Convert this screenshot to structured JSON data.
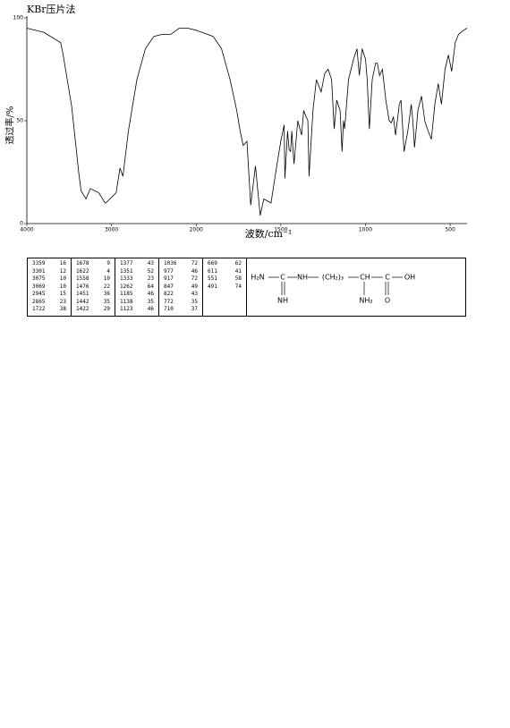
{
  "header": {
    "title": "KBr压片法"
  },
  "chart_data": {
    "type": "line",
    "xlabel": "波数/cm⁻¹",
    "ylabel": "透过率/%",
    "color": "#000000",
    "xlim": [
      4000,
      400
    ],
    "xticks": [
      4000,
      3000,
      2000,
      1500,
      1000,
      500
    ],
    "ylim": [
      0,
      100
    ],
    "yticks": [
      0,
      50,
      100
    ],
    "x": [
      4000,
      3800,
      3600,
      3575,
      3470,
      3385,
      3359,
      3301,
      3250,
      3150,
      3075,
      3069,
      2945,
      2900,
      2865,
      2800,
      2700,
      2600,
      2500,
      2400,
      2300,
      2200,
      2100,
      2000,
      1900,
      1850,
      1800,
      1760,
      1740,
      1722,
      1700,
      1678,
      1650,
      1622,
      1600,
      1558,
      1530,
      1500,
      1480,
      1476,
      1460,
      1451,
      1442,
      1435,
      1422,
      1400,
      1377,
      1365,
      1351,
      1340,
      1333,
      1310,
      1290,
      1262,
      1240,
      1220,
      1200,
      1185,
      1170,
      1150,
      1138,
      1130,
      1123,
      1100,
      1070,
      1050,
      1036,
      1020,
      1000,
      990,
      977,
      960,
      940,
      930,
      917,
      900,
      880,
      860,
      847,
      835,
      822,
      800,
      790,
      772,
      750,
      730,
      720,
      710,
      690,
      669,
      650,
      630,
      611,
      590,
      570,
      551,
      530,
      510,
      491,
      470,
      450,
      420,
      400
    ],
    "values": [
      95,
      93,
      88,
      83,
      57,
      24,
      16,
      12,
      17,
      15,
      10,
      10,
      15,
      27,
      23,
      45,
      70,
      85,
      91,
      92,
      92,
      95,
      95,
      94,
      91,
      85,
      70,
      55,
      45,
      38,
      40,
      9,
      28,
      4,
      12,
      10,
      25,
      40,
      48,
      22,
      45,
      36,
      35,
      45,
      29,
      50,
      43,
      55,
      52,
      50,
      23,
      55,
      70,
      64,
      73,
      75,
      70,
      46,
      60,
      55,
      35,
      50,
      46,
      70,
      80,
      85,
      72,
      85,
      80,
      70,
      46,
      70,
      78,
      78,
      72,
      75,
      60,
      50,
      49,
      52,
      43,
      58,
      60,
      35,
      45,
      58,
      50,
      37,
      55,
      62,
      50,
      45,
      41,
      58,
      68,
      58,
      75,
      82,
      74,
      88,
      92,
      94,
      95
    ]
  },
  "table": {
    "columns": [
      [
        [
          "3359",
          "16"
        ],
        [
          "3301",
          "12"
        ],
        [
          "3075",
          "10"
        ],
        [
          "3069",
          "10"
        ],
        [
          "2945",
          "15"
        ],
        [
          "2865",
          "23"
        ],
        [
          "1722",
          "38"
        ]
      ],
      [
        [
          "1678",
          "9"
        ],
        [
          "1622",
          "4"
        ],
        [
          "1558",
          "10"
        ],
        [
          "1476",
          "22"
        ],
        [
          "1451",
          "36"
        ],
        [
          "1442",
          "35"
        ],
        [
          "1422",
          "29"
        ]
      ],
      [
        [
          "1377",
          "43"
        ],
        [
          "1351",
          "52"
        ],
        [
          "1333",
          "23"
        ],
        [
          "1262",
          "64"
        ],
        [
          "1185",
          "46"
        ],
        [
          "1138",
          "35"
        ],
        [
          "1123",
          "46"
        ]
      ],
      [
        [
          "1036",
          "72"
        ],
        [
          "977",
          "46"
        ],
        [
          "917",
          "72"
        ],
        [
          "847",
          "49"
        ],
        [
          "822",
          "43"
        ],
        [
          "772",
          "35"
        ],
        [
          "710",
          "37"
        ]
      ],
      [
        [
          "669",
          "62"
        ],
        [
          "611",
          "41"
        ],
        [
          "551",
          "58"
        ],
        [
          "491",
          "74"
        ]
      ]
    ]
  },
  "structure": {
    "main": [
      "H₂N",
      "C",
      "NH",
      "(CH₂)₃",
      "CH",
      "C",
      "OH"
    ],
    "below": [
      "NH",
      "NH₂",
      "O"
    ]
  }
}
